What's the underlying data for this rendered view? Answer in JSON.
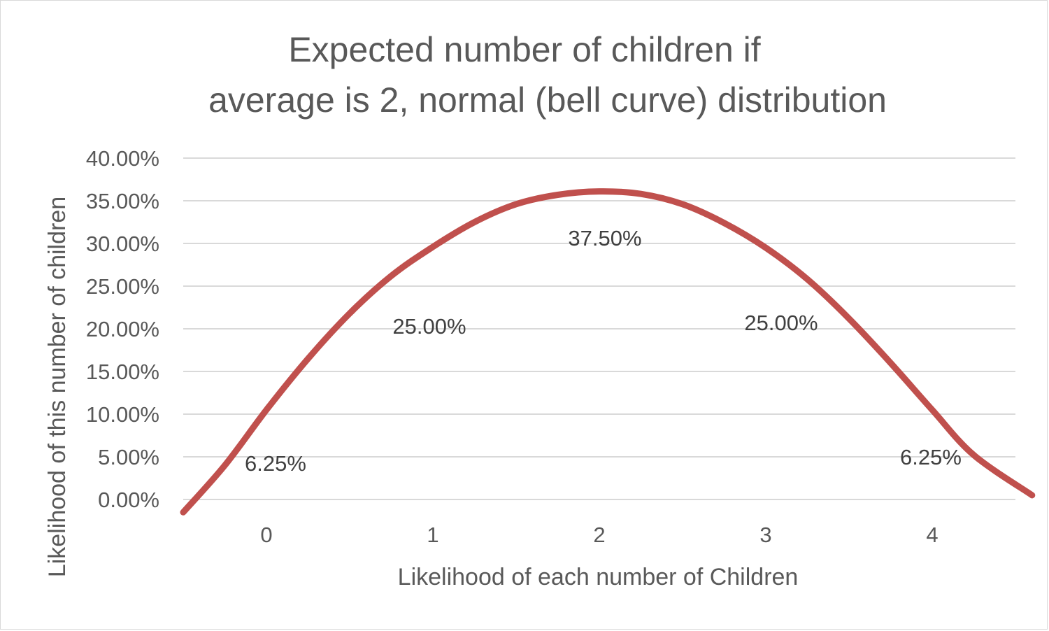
{
  "chart_data": {
    "type": "line",
    "title_lines": [
      "Expected number of children if",
      "average is 2, normal (bell curve) distribution"
    ],
    "xlabel": "Likelihood of each number of Children",
    "ylabel": "Likelihood of this number of children",
    "categories": [
      "0",
      "1",
      "2",
      "3",
      "4"
    ],
    "y_ticks": [
      "0.00%",
      "5.00%",
      "10.00%",
      "15.00%",
      "20.00%",
      "25.00%",
      "30.00%",
      "35.00%",
      "40.00%"
    ],
    "ylim": [
      0,
      40
    ],
    "grid": true,
    "legend": "none",
    "series": [
      {
        "values": [
          6.25,
          25.0,
          37.5,
          25.0,
          6.25
        ],
        "data_labels": [
          "6.25%",
          "25.00%",
          "37.50%",
          "25.00%",
          "6.25%"
        ],
        "smoothed_curve": {
          "x": [
            -0.5,
            -0.25,
            0,
            0.25,
            0.5,
            0.75,
            1,
            1.25,
            1.5,
            1.75,
            2,
            2.25,
            2.5,
            2.75,
            3,
            3.25,
            3.5,
            3.75,
            4,
            4.25,
            4.6
          ],
          "y": [
            -1.5,
            4.0,
            10.5,
            16.5,
            21.8,
            26.2,
            29.6,
            32.5,
            34.6,
            35.7,
            36.1,
            35.8,
            34.6,
            32.4,
            29.5,
            25.8,
            21.2,
            16.0,
            10.5,
            5.2,
            0.5
          ]
        }
      }
    ]
  }
}
